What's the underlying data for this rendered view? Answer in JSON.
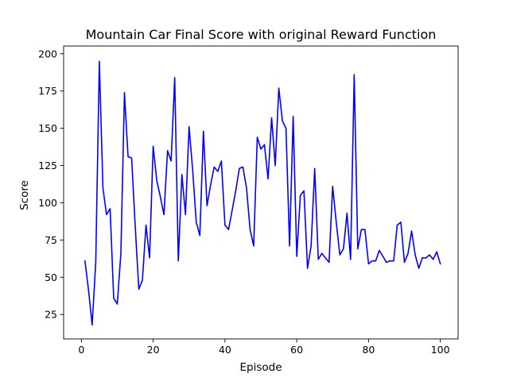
{
  "chart_data": {
    "type": "line",
    "title": "Mountain Car Final Score with original Reward Function",
    "xlabel": "Episode",
    "ylabel": "Score",
    "xlim": [
      -4.95,
      104.95
    ],
    "ylim": [
      8.6,
      205.2
    ],
    "xticks": [
      0,
      20,
      40,
      60,
      80,
      100
    ],
    "yticks": [
      25,
      50,
      75,
      100,
      125,
      150,
      175,
      200
    ],
    "grid": false,
    "series": [
      {
        "name": "Score",
        "color": "#0000ff",
        "x": [
          1,
          2,
          3,
          4,
          5,
          6,
          7,
          8,
          9,
          10,
          11,
          12,
          13,
          14,
          15,
          16,
          17,
          18,
          19,
          20,
          21,
          22,
          23,
          24,
          25,
          26,
          27,
          28,
          29,
          30,
          31,
          32,
          33,
          34,
          35,
          36,
          37,
          38,
          39,
          40,
          41,
          42,
          43,
          44,
          45,
          46,
          47,
          48,
          49,
          50,
          51,
          52,
          53,
          54,
          55,
          56,
          57,
          58,
          59,
          60,
          61,
          62,
          63,
          64,
          65,
          66,
          67,
          68,
          69,
          70,
          71,
          72,
          73,
          74,
          75,
          76,
          77,
          78,
          79,
          80,
          81,
          82,
          83,
          84,
          85,
          86,
          87,
          88,
          89,
          90,
          91,
          92,
          93,
          94,
          95,
          96,
          97,
          98,
          99,
          100
        ],
        "values": [
          61,
          41,
          18,
          60,
          195,
          110,
          92,
          96,
          36,
          32,
          66,
          174,
          131,
          130,
          84,
          42,
          48,
          85,
          63,
          138,
          115,
          104,
          92,
          135,
          128,
          184,
          61,
          119,
          92,
          151,
          122,
          87,
          78,
          148,
          98,
          112,
          124,
          121,
          128,
          85,
          82,
          95,
          108,
          123,
          124,
          110,
          82,
          71,
          144,
          136,
          139,
          116,
          157,
          125,
          177,
          155,
          150,
          71,
          158,
          64,
          105,
          108,
          56,
          71,
          123,
          62,
          66,
          63,
          60,
          111,
          87,
          65,
          69,
          93,
          62,
          186,
          69,
          82,
          82,
          59,
          61,
          61,
          68,
          64,
          60,
          61,
          61,
          85,
          87,
          60,
          66,
          81,
          65,
          56,
          63,
          63,
          65,
          62,
          67,
          59
        ]
      }
    ]
  }
}
